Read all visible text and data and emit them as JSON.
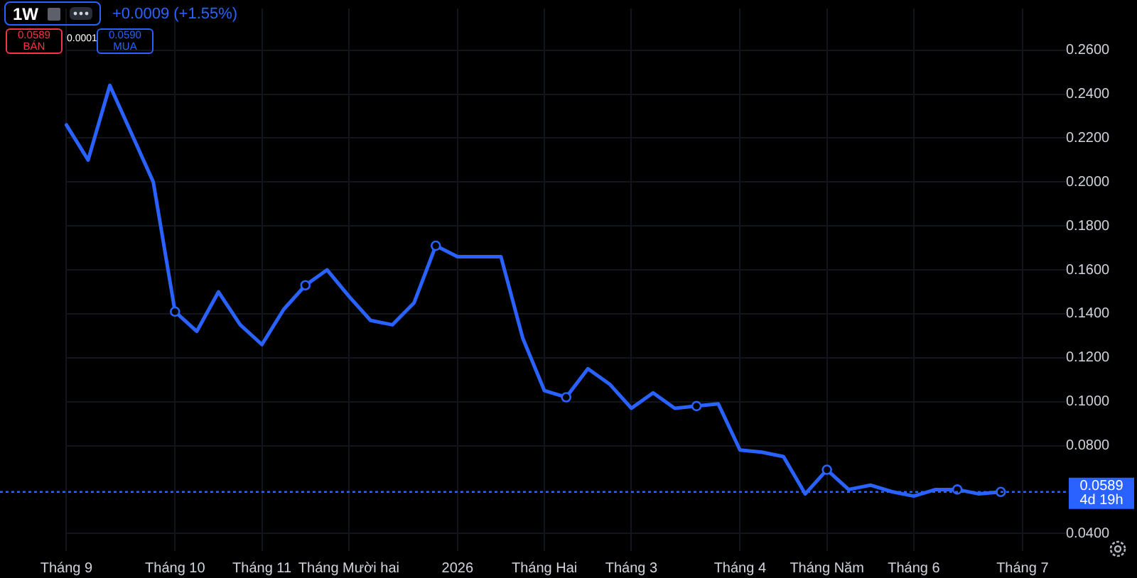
{
  "chart_data": {
    "type": "line",
    "title": "1W",
    "subtitle": "+0.0009 (+1.55%)",
    "categories": [
      "Tháng 9",
      null,
      null,
      null,
      null,
      "Tháng 10",
      null,
      null,
      null,
      "Tháng 11",
      null,
      null,
      null,
      "Tháng Mười hai",
      null,
      null,
      null,
      null,
      "2026",
      null,
      null,
      null,
      "Tháng Hai",
      null,
      null,
      null,
      "Tháng 3",
      null,
      null,
      null,
      null,
      "Tháng 4",
      null,
      null,
      null,
      "Tháng Năm",
      null,
      null,
      null,
      "Tháng 6",
      null,
      null,
      null,
      null,
      "Tháng 7",
      null,
      null
    ],
    "series": [
      {
        "color": "#2962ff",
        "values": [
          0.226,
          0.21,
          0.244,
          0.222,
          0.2,
          0.141,
          0.132,
          0.15,
          0.135,
          0.126,
          0.142,
          0.153,
          0.16,
          0.148,
          0.137,
          0.135,
          0.145,
          0.171,
          0.166,
          0.166,
          0.166,
          0.129,
          0.105,
          0.102,
          0.115,
          0.108,
          0.097,
          0.104,
          0.097,
          0.098,
          0.099,
          0.078,
          0.077,
          0.075,
          0.058,
          0.069,
          0.06,
          0.062,
          0.059,
          0.057,
          0.06,
          0.06,
          0.058,
          0.0589,
          null,
          null,
          null
        ]
      },
      {
        "type": "scatter",
        "color": "#2962ff",
        "marker": "circle",
        "values": [
          null,
          null,
          null,
          null,
          null,
          0.141,
          null,
          null,
          null,
          null,
          null,
          0.153,
          null,
          null,
          null,
          null,
          null,
          0.171,
          null,
          null,
          null,
          null,
          null,
          0.102,
          null,
          null,
          null,
          null,
          null,
          0.098,
          null,
          null,
          null,
          null,
          null,
          0.069,
          null,
          null,
          null,
          null,
          null,
          0.06,
          null,
          0.0589,
          null,
          null,
          null
        ]
      }
    ],
    "ylim": [
      0.032,
      0.279
    ],
    "yticks": [
      {
        "value": 0.04,
        "label": "0.0400"
      },
      {
        "value": 0.08,
        "label": "0.0800"
      },
      {
        "value": 0.1,
        "label": "0.1000"
      },
      {
        "value": 0.12,
        "label": "0.1200"
      },
      {
        "value": 0.14,
        "label": "0.1400"
      },
      {
        "value": 0.16,
        "label": "0.1600"
      },
      {
        "value": 0.18,
        "label": "0.1800"
      },
      {
        "value": 0.2,
        "label": "0.2000"
      },
      {
        "value": 0.22,
        "label": "0.2200"
      },
      {
        "value": 0.24,
        "label": "0.2400"
      },
      {
        "value": 0.26,
        "label": "0.2600"
      }
    ],
    "grid": true,
    "ref_lines": [
      {
        "axis": "y",
        "value": 0.0589,
        "label": "0.0589",
        "color": "#2962ff",
        "line_style": "dotted"
      }
    ],
    "annotations": [
      "0.0589",
      "BÁN",
      "0.0001",
      "0.0590",
      "MUA",
      "4d 19h"
    ]
  }
}
